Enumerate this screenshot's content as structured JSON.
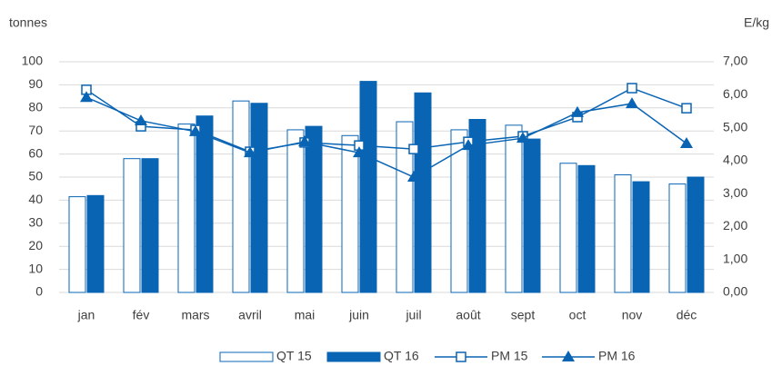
{
  "chart_data": {
    "type": "bar-line",
    "y_label": "tonnes",
    "y2_label": "E/kg",
    "categories": [
      "jan",
      "fév",
      "mars",
      "avril",
      "mai",
      "juin",
      "juil",
      "août",
      "sept",
      "oct",
      "nov",
      "déc"
    ],
    "series": [
      {
        "name": "QT 15",
        "type": "bar",
        "style": "outline",
        "color": "#0a64b4",
        "values": [
          41.5,
          58,
          73,
          83,
          70.5,
          68,
          74,
          70.5,
          72.5,
          56,
          51,
          47
        ]
      },
      {
        "name": "QT 16",
        "type": "bar",
        "style": "filled",
        "color": "#0a64b4",
        "values": [
          42,
          58,
          76.5,
          82,
          72,
          91.5,
          86.5,
          75,
          66.5,
          55,
          48,
          50
        ]
      },
      {
        "name": "PM 15",
        "type": "line",
        "marker": "square",
        "axis": "y2",
        "color": "#0a64b4",
        "values": [
          6.15,
          5.04,
          4.93,
          4.27,
          4.55,
          4.46,
          4.35,
          4.57,
          4.74,
          5.32,
          6.2,
          5.59
        ]
      },
      {
        "name": "PM 16",
        "type": "line",
        "marker": "triangle",
        "axis": "y2",
        "color": "#0a64b4",
        "values": [
          5.92,
          5.21,
          4.88,
          4.24,
          4.57,
          4.24,
          3.5,
          4.46,
          4.68,
          5.46,
          5.73,
          4.52
        ]
      }
    ],
    "ylim": [
      0,
      100
    ],
    "yticks": [
      0,
      10,
      20,
      30,
      40,
      50,
      60,
      70,
      80,
      90,
      100
    ],
    "y2lim": [
      0,
      7
    ],
    "y2ticks": [
      {
        "value": 0,
        "label": "0,00"
      },
      {
        "value": 1,
        "label": "1,00"
      },
      {
        "value": 2,
        "label": "2,00"
      },
      {
        "value": 3,
        "label": "3,00"
      },
      {
        "value": 4,
        "label": "4,00"
      },
      {
        "value": 5,
        "label": "5,00"
      },
      {
        "value": 6,
        "label": "6,00"
      },
      {
        "value": 7,
        "label": "7,00"
      }
    ],
    "grid": true,
    "legend": "bottom"
  }
}
